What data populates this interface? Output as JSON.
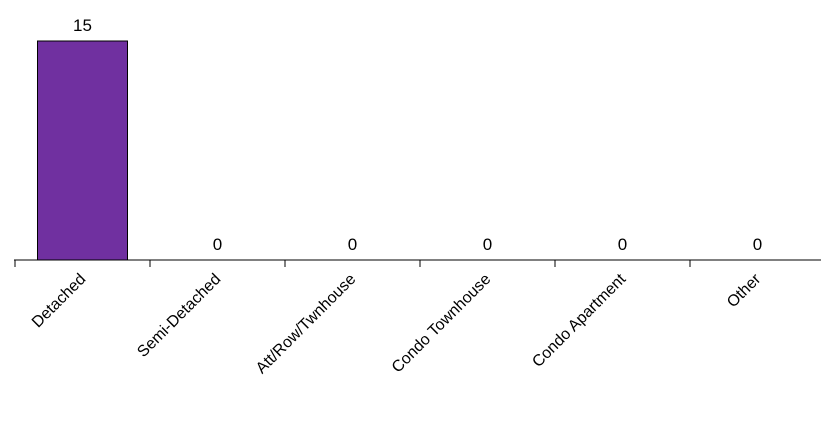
{
  "chart_data": {
    "type": "bar",
    "categories": [
      "Detached",
      "Semi-Detached",
      "Att/Row/Twnhouse",
      "Condo Townhouse",
      "Condo Apartment",
      "Other"
    ],
    "values": [
      15,
      0,
      0,
      0,
      0,
      0
    ],
    "data_labels": [
      "15",
      "0",
      "0",
      "0",
      "0",
      "0"
    ],
    "ylim": [
      0,
      15
    ],
    "grid": false,
    "legend": "none",
    "colors": {
      "bar_fill": "#7030a0",
      "bar_stroke": "#000000",
      "axis": "#000000"
    }
  }
}
